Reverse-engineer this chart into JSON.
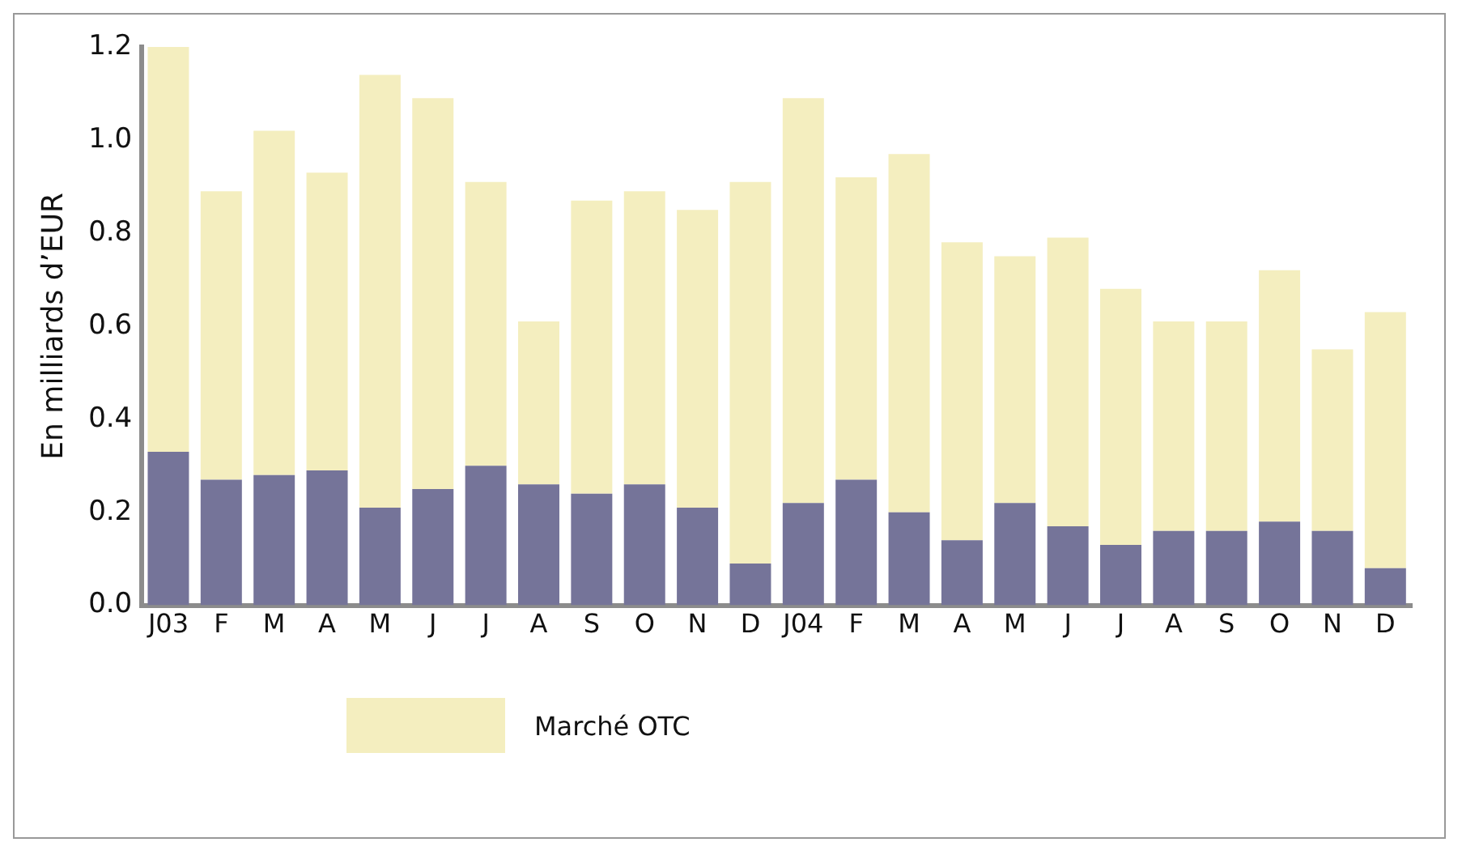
{
  "chart_data": {
    "type": "bar",
    "stacked": true,
    "ylabel": "En milliards d’EUR",
    "categories": [
      "J03",
      "F",
      "M",
      "A",
      "M",
      "J",
      "J",
      "A",
      "S",
      "O",
      "N",
      "D",
      "J04",
      "F",
      "M",
      "A",
      "M",
      "J",
      "J",
      "A",
      "S",
      "O",
      "N",
      "D"
    ],
    "series": [
      {
        "color": "#757499",
        "values": [
          0.33,
          0.27,
          0.28,
          0.29,
          0.21,
          0.25,
          0.3,
          0.26,
          0.24,
          0.26,
          0.21,
          0.09,
          0.22,
          0.27,
          0.2,
          0.14,
          0.22,
          0.17,
          0.13,
          0.16,
          0.16,
          0.18,
          0.16,
          0.08
        ]
      },
      {
        "name": "Marché OTC",
        "color": "#f4eebf",
        "values": [
          0.87,
          0.62,
          0.74,
          0.64,
          0.93,
          0.84,
          0.61,
          0.35,
          0.63,
          0.63,
          0.64,
          0.82,
          0.87,
          0.65,
          0.77,
          0.64,
          0.53,
          0.62,
          0.55,
          0.45,
          0.45,
          0.54,
          0.39,
          0.55
        ]
      }
    ],
    "ylim": [
      0,
      1.2
    ],
    "yticks": [
      {
        "value": 0,
        "label": "0.0"
      },
      0.2,
      0.4,
      0.6,
      0.8,
      {
        "value": 1,
        "label": "1.0"
      },
      1.2
    ],
    "grid": false,
    "legend": "bottom"
  }
}
